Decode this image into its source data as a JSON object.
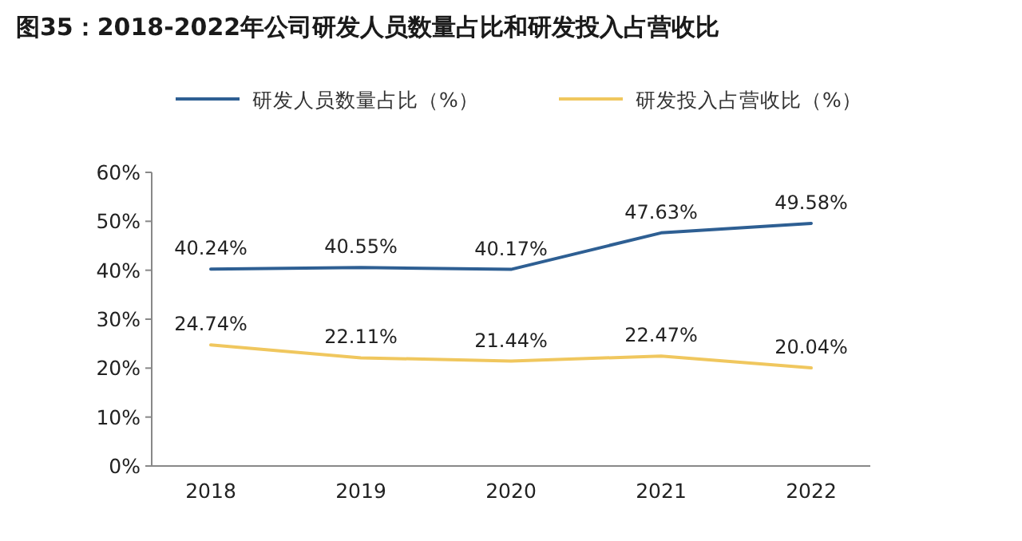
{
  "chart_data": {
    "type": "line",
    "title": "图35：2018-2022年公司研发人员数量占比和研发投入占营收比",
    "categories": [
      "2018",
      "2019",
      "2020",
      "2021",
      "2022"
    ],
    "series": [
      {
        "name": "研发人员数量占比（%）",
        "color": "#2e5f93",
        "values": [
          40.24,
          40.55,
          40.17,
          47.63,
          49.58
        ],
        "value_labels": [
          "40.24%",
          "40.55%",
          "40.17%",
          "47.63%",
          "49.58%"
        ]
      },
      {
        "name": "研发投入占营收比（%）",
        "color": "#f0c75e",
        "values": [
          24.74,
          22.11,
          21.44,
          22.47,
          20.04
        ],
        "value_labels": [
          "24.74%",
          "22.11%",
          "21.44%",
          "22.47%",
          "20.04%"
        ]
      }
    ],
    "ylim": [
      0,
      60
    ],
    "yticks": [
      {
        "value": 0,
        "label": "0%"
      },
      {
        "value": 10,
        "label": "10%"
      },
      {
        "value": 20,
        "label": "20%"
      },
      {
        "value": 30,
        "label": "30%"
      },
      {
        "value": 40,
        "label": "40%"
      },
      {
        "value": 50,
        "label": "50%"
      },
      {
        "value": 60,
        "label": "60%"
      }
    ],
    "legend": "top",
    "marker": "none",
    "line_style": "solid"
  }
}
